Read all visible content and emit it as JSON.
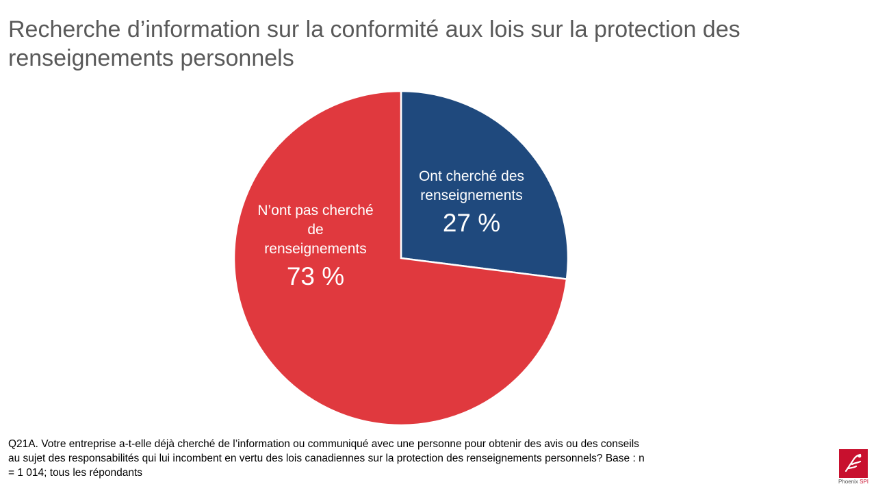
{
  "title": "Recherche d’information sur la conformité aux lois sur la protection des renseignements personnels",
  "chart_data": {
    "type": "pie",
    "title": "Recherche d’information sur la conformité aux lois sur la protection des renseignements personnels",
    "slices": [
      {
        "label_lines": [
          "Ont cherché des",
          "renseignements"
        ],
        "value": 27,
        "value_label": "27 %",
        "color": "#1f497d"
      },
      {
        "label_lines": [
          "N’ont pas cherché",
          "de",
          "renseignements"
        ],
        "value": 73,
        "value_label": "73 %",
        "color": "#e0393e"
      }
    ]
  },
  "footnote": "Q21A. Votre entreprise a-t-elle déjà cherché de l’information ou communiqué avec une personne pour obtenir des avis ou des conseils au sujet des responsabilités qui lui incombent en vertu des lois canadiennes sur la protection des renseignements personnels?  Base : n = 1 014; tous les répondants",
  "logo": {
    "name": "Phoenix",
    "suffix": "SPI"
  }
}
